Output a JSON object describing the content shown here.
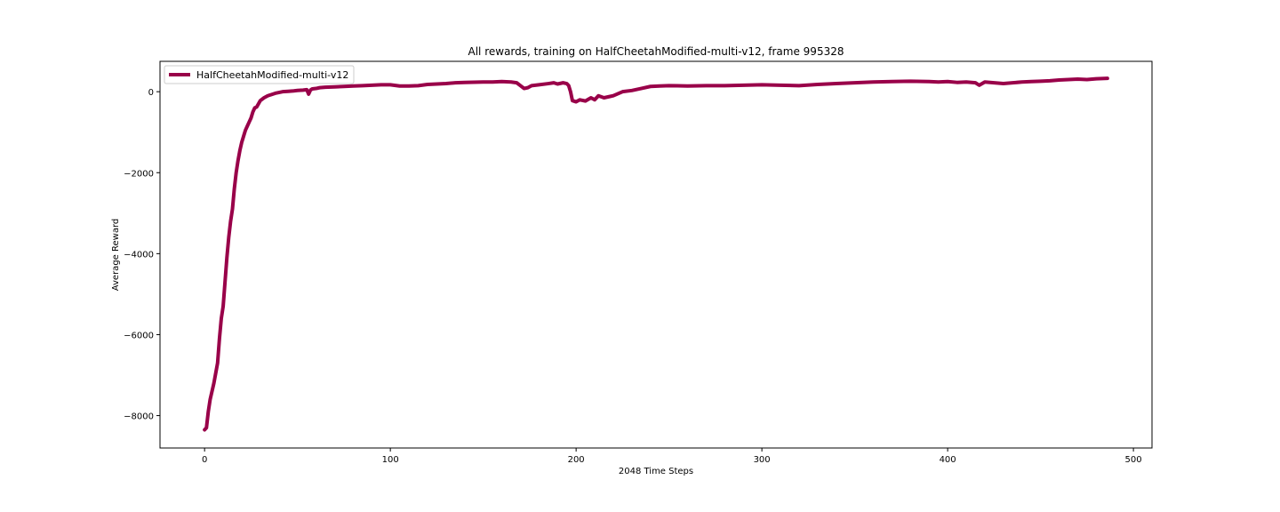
{
  "chart_data": {
    "type": "line",
    "title": "All rewards, training on HalfCheetahModified-multi-v12, frame 995328",
    "xlabel": "2048 Time Steps",
    "ylabel": "Average Reward",
    "xlim": [
      -24,
      510
    ],
    "ylim": [
      -8800,
      750
    ],
    "xticks": [
      0,
      100,
      200,
      300,
      400,
      500
    ],
    "yticks": [
      -8000,
      -6000,
      -4000,
      -2000,
      0
    ],
    "xtick_labels": [
      "0",
      "100",
      "200",
      "300",
      "400",
      "500"
    ],
    "ytick_labels": [
      "−8000",
      "−6000",
      "−4000",
      "−2000",
      "0"
    ],
    "grid": false,
    "legend_position": "top-left",
    "series": [
      {
        "name": "HalfCheetahModified-multi-v12",
        "color": "#990049",
        "x": [
          0,
          1,
          2,
          3,
          5,
          7,
          8,
          9,
          10,
          11,
          12,
          13,
          14,
          15,
          16,
          17,
          18,
          19,
          20,
          21,
          22,
          23,
          24,
          25,
          26,
          27,
          28,
          29,
          30,
          32,
          34,
          36,
          38,
          40,
          42,
          45,
          48,
          50,
          53,
          55,
          56,
          57,
          58,
          60,
          62,
          65,
          70,
          75,
          80,
          85,
          90,
          95,
          100,
          105,
          110,
          115,
          120,
          125,
          130,
          135,
          140,
          145,
          150,
          155,
          160,
          165,
          168,
          170,
          172,
          174,
          176,
          180,
          185,
          188,
          190,
          193,
          195,
          196,
          197,
          198,
          200,
          202,
          205,
          208,
          210,
          212,
          215,
          218,
          220,
          225,
          230,
          235,
          240,
          245,
          250,
          260,
          270,
          280,
          290,
          300,
          310,
          320,
          330,
          340,
          350,
          360,
          370,
          380,
          390,
          395,
          400,
          405,
          410,
          415,
          417,
          420,
          425,
          430,
          435,
          440,
          445,
          450,
          455,
          460,
          465,
          470,
          475,
          480,
          486
        ],
        "values": [
          -8350,
          -8300,
          -7900,
          -7600,
          -7200,
          -6700,
          -6100,
          -5600,
          -5300,
          -4700,
          -4100,
          -3600,
          -3200,
          -2900,
          -2400,
          -2000,
          -1700,
          -1450,
          -1250,
          -1100,
          -950,
          -850,
          -750,
          -650,
          -500,
          -400,
          -380,
          -300,
          -220,
          -150,
          -100,
          -70,
          -40,
          -20,
          0,
          10,
          20,
          30,
          40,
          50,
          -60,
          40,
          70,
          80,
          100,
          110,
          120,
          130,
          140,
          150,
          160,
          170,
          170,
          140,
          140,
          150,
          180,
          190,
          200,
          220,
          230,
          235,
          240,
          240,
          250,
          240,
          220,
          150,
          80,
          100,
          150,
          170,
          200,
          220,
          190,
          220,
          200,
          150,
          0,
          -220,
          -250,
          -200,
          -230,
          -150,
          -200,
          -100,
          -150,
          -120,
          -100,
          0,
          30,
          80,
          130,
          140,
          150,
          140,
          150,
          150,
          160,
          170,
          160,
          150,
          180,
          200,
          220,
          240,
          250,
          260,
          250,
          240,
          250,
          230,
          240,
          220,
          160,
          240,
          220,
          200,
          220,
          240,
          250,
          260,
          270,
          290,
          300,
          310,
          300,
          320,
          330
        ]
      }
    ]
  }
}
